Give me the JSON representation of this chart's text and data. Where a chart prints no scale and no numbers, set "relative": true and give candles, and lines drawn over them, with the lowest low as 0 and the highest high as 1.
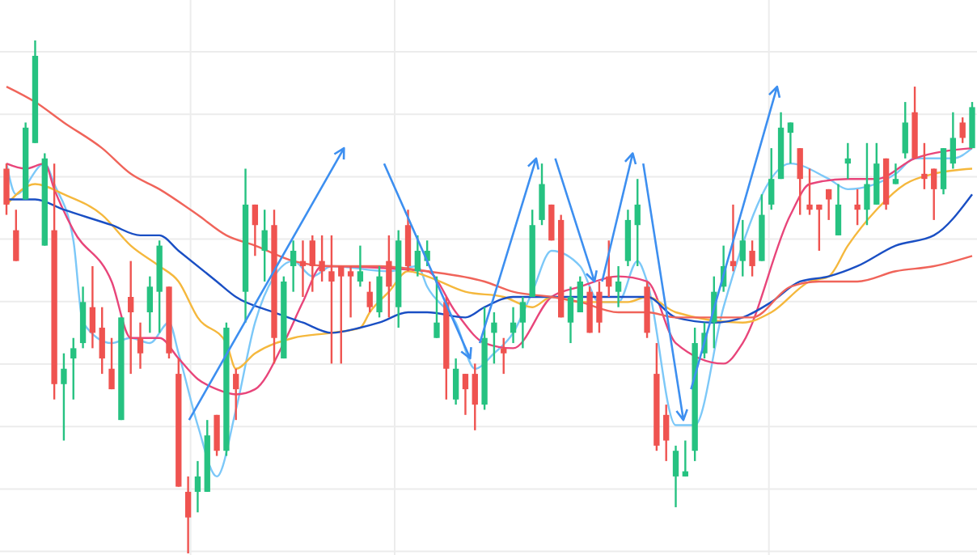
{
  "chart_data": {
    "type": "candlestick",
    "relative": true,
    "grid": true,
    "categories": [
      null,
      null,
      null,
      null,
      null,
      null,
      null,
      null,
      null,
      null,
      null,
      null,
      null,
      null,
      null,
      null,
      null,
      null,
      null,
      null,
      null,
      null,
      null,
      null,
      null,
      null,
      null,
      null,
      null,
      null,
      null,
      null,
      null,
      null,
      null,
      null,
      null,
      null,
      null,
      null,
      null,
      null,
      null,
      null,
      null,
      null,
      null,
      null,
      null,
      null,
      null,
      null,
      null,
      null,
      null,
      null,
      null,
      null,
      null,
      null,
      null,
      null,
      null,
      null,
      null,
      null,
      null,
      null,
      null,
      null,
      null,
      null,
      null,
      null,
      null,
      null,
      null,
      null,
      null,
      null,
      null,
      null,
      null,
      null,
      null,
      null,
      null,
      null,
      null,
      null,
      null,
      null,
      null,
      null,
      null,
      null,
      null,
      null,
      null,
      null,
      null,
      null
    ],
    "ohlc": [
      [
        0.75,
        0.76,
        0.66,
        0.68
      ],
      [
        0.63,
        0.67,
        0.57,
        0.57
      ],
      [
        0.69,
        0.84,
        0.69,
        0.83
      ],
      [
        0.8,
        1.0,
        0.8,
        0.97
      ],
      [
        0.6,
        0.78,
        0.6,
        0.77
      ],
      [
        0.63,
        0.76,
        0.3,
        0.33
      ],
      [
        0.33,
        0.39,
        0.22,
        0.36
      ],
      [
        0.38,
        0.42,
        0.3,
        0.4
      ],
      [
        0.41,
        0.52,
        0.4,
        0.49
      ],
      [
        0.48,
        0.56,
        0.4,
        0.43
      ],
      [
        0.44,
        0.48,
        0.35,
        0.38
      ],
      [
        0.36,
        0.42,
        0.32,
        0.32
      ],
      [
        0.26,
        0.46,
        0.26,
        0.46
      ],
      [
        0.5,
        0.57,
        0.35,
        0.47
      ],
      [
        0.42,
        0.45,
        0.36,
        0.39
      ],
      [
        0.47,
        0.54,
        0.43,
        0.52
      ],
      [
        0.51,
        0.61,
        0.43,
        0.6
      ],
      [
        0.52,
        0.52,
        0.38,
        0.39
      ],
      [
        0.35,
        0.38,
        0.13,
        0.13
      ],
      [
        0.12,
        0.15,
        0,
        0.07
      ],
      [
        0.12,
        0.18,
        0.08,
        0.15
      ],
      [
        0.12,
        0.26,
        0.12,
        0.23
      ],
      [
        0.27,
        0.27,
        0.19,
        0.2
      ],
      [
        0.2,
        0.45,
        0.19,
        0.44
      ],
      [
        0.35,
        0.36,
        0.26,
        0.32
      ],
      [
        0.51,
        0.75,
        0.45,
        0.68
      ],
      [
        0.68,
        0.68,
        0.58,
        0.64
      ],
      [
        0.59,
        0.67,
        0.53,
        0.63
      ],
      [
        0.64,
        0.67,
        0.37,
        0.42
      ],
      [
        0.38,
        0.54,
        0.38,
        0.53
      ],
      [
        0.56,
        0.61,
        0.51,
        0.59
      ],
      [
        0.57,
        0.61,
        0.5,
        0.56
      ],
      [
        0.61,
        0.62,
        0.51,
        0.56
      ],
      [
        0.57,
        0.62,
        0.53,
        0.55
      ],
      [
        0.55,
        0.62,
        0.37,
        0.53
      ],
      [
        0.56,
        0.56,
        0.37,
        0.54
      ],
      [
        0.55,
        0.56,
        0.46,
        0.54
      ],
      [
        0.53,
        0.6,
        0.52,
        0.55
      ],
      [
        0.51,
        0.53,
        0.47,
        0.48
      ],
      [
        0.47,
        0.56,
        0.46,
        0.54
      ],
      [
        0.57,
        0.62,
        0.46,
        0.52
      ],
      [
        0.48,
        0.63,
        0.44,
        0.61
      ],
      [
        0.64,
        0.67,
        0.55,
        0.56
      ],
      [
        0.55,
        0.62,
        0.54,
        0.59
      ],
      [
        0.57,
        0.61,
        0.56,
        0.59
      ],
      [
        0.42,
        0.54,
        0.42,
        0.45
      ],
      [
        0.49,
        0.5,
        0.3,
        0.36
      ],
      [
        0.3,
        0.38,
        0.29,
        0.36
      ],
      [
        0.35,
        0.35,
        0.27,
        0.32
      ],
      [
        0.35,
        0.37,
        0.24,
        0.29
      ],
      [
        0.29,
        0.48,
        0.28,
        0.42
      ],
      [
        0.43,
        0.47,
        0.37,
        0.45
      ],
      [
        0.4,
        0.42,
        0.35,
        0.39
      ],
      [
        0.43,
        0.48,
        0.41,
        0.45
      ],
      [
        0.45,
        0.5,
        0.4,
        0.49
      ],
      [
        0.5,
        0.67,
        0.5,
        0.64
      ],
      [
        0.65,
        0.76,
        0.64,
        0.72
      ],
      [
        0.68,
        0.68,
        0.61,
        0.61
      ],
      [
        0.65,
        0.66,
        0.46,
        0.46
      ],
      [
        0.45,
        0.52,
        0.41,
        0.5
      ],
      [
        0.47,
        0.54,
        0.47,
        0.53
      ],
      [
        0.51,
        0.52,
        0.43,
        0.43
      ],
      [
        0.51,
        0.53,
        0.43,
        0.45
      ],
      [
        0.54,
        0.61,
        0.5,
        0.52
      ],
      [
        0.51,
        0.56,
        0.48,
        0.53
      ],
      [
        0.57,
        0.67,
        0.56,
        0.65
      ],
      [
        0.64,
        0.73,
        0.56,
        0.68
      ],
      [
        0.52,
        0.53,
        0.42,
        0.43
      ],
      [
        0.35,
        0.41,
        0.2,
        0.21
      ],
      [
        0.27,
        0.29,
        0.18,
        0.22
      ],
      [
        0.15,
        0.21,
        0.09,
        0.2
      ],
      [
        0.15,
        0.22,
        0.15,
        0.16
      ],
      [
        0.2,
        0.44,
        0.18,
        0.41
      ],
      [
        0.39,
        0.45,
        0.38,
        0.43
      ],
      [
        0.45,
        0.54,
        0.4,
        0.51
      ],
      [
        0.52,
        0.6,
        0.51,
        0.56
      ],
      [
        0.57,
        0.68,
        0.55,
        0.56
      ],
      [
        0.57,
        0.65,
        0.54,
        0.61
      ],
      [
        0.59,
        0.61,
        0.54,
        0.56
      ],
      [
        0.57,
        0.7,
        0.57,
        0.66
      ],
      [
        0.68,
        0.79,
        0.67,
        0.73
      ],
      [
        0.73,
        0.86,
        0.73,
        0.83
      ],
      [
        0.82,
        0.84,
        0.76,
        0.84
      ],
      [
        0.79,
        0.79,
        0.66,
        0.73
      ],
      [
        0.68,
        0.75,
        0.66,
        0.67
      ],
      [
        0.68,
        0.68,
        0.59,
        0.67
      ],
      [
        0.71,
        0.71,
        0.65,
        0.69
      ],
      [
        0.62,
        0.72,
        0.62,
        0.68
      ],
      [
        0.76,
        0.8,
        0.73,
        0.77
      ],
      [
        0.68,
        0.71,
        0.64,
        0.67
      ],
      [
        0.67,
        0.8,
        0.64,
        0.72
      ],
      [
        0.68,
        0.8,
        0.68,
        0.76
      ],
      [
        0.77,
        0.77,
        0.67,
        0.68
      ],
      [
        0.72,
        0.76,
        0.72,
        0.73
      ],
      [
        0.78,
        0.88,
        0.77,
        0.84
      ],
      [
        0.86,
        0.91,
        0.77,
        0.77
      ],
      [
        0.74,
        0.8,
        0.71,
        0.73
      ],
      [
        0.75,
        0.75,
        0.65,
        0.71
      ],
      [
        0.71,
        0.79,
        0.7,
        0.79
      ],
      [
        0.76,
        0.86,
        0.75,
        0.81
      ],
      [
        0.84,
        0.85,
        0.8,
        0.81
      ],
      [
        0.79,
        0.88,
        0.79,
        0.87
      ]
    ],
    "colors": [
      "#ef5350",
      "#ef5350",
      "#26c281",
      "#26c281",
      "#26c281",
      "#ef5350",
      "#26c281",
      "#26c281",
      "#26c281",
      "#ef5350",
      "#ef5350",
      "#ef5350",
      "#26c281",
      "#ef5350",
      "#ef5350",
      "#26c281",
      "#26c281",
      "#ef5350",
      "#ef5350",
      "#ef5350",
      "#26c281",
      "#26c281",
      "#ef5350",
      "#26c281",
      "#ef5350",
      "#26c281",
      "#ef5350",
      "#26c281",
      "#ef5350",
      "#26c281",
      "#26c281",
      "#ef5350",
      "#ef5350",
      "#ef5350",
      "#ef5350",
      "#ef5350",
      "#ef5350",
      "#26c281",
      "#ef5350",
      "#26c281",
      "#ef5350",
      "#26c281",
      "#ef5350",
      "#26c281",
      "#26c281",
      "#26c281",
      "#ef5350",
      "#26c281",
      "#ef5350",
      "#ef5350",
      "#26c281",
      "#26c281",
      "#ef5350",
      "#26c281",
      "#26c281",
      "#26c281",
      "#26c281",
      "#ef5350",
      "#ef5350",
      "#26c281",
      "#26c281",
      "#ef5350",
      "#ef5350",
      "#ef5350",
      "#26c281",
      "#26c281",
      "#26c281",
      "#ef5350",
      "#ef5350",
      "#ef5350",
      "#26c281",
      "#26c281",
      "#26c281",
      "#26c281",
      "#26c281",
      "#26c281",
      "#ef5350",
      "#26c281",
      "#ef5350",
      "#26c281",
      "#26c281",
      "#26c281",
      "#26c281",
      "#ef5350",
      "#ef5350",
      "#ef5350",
      "#ef5350",
      "#26c281",
      "#26c281",
      "#ef5350",
      "#26c281",
      "#26c281",
      "#ef5350",
      "#26c281",
      "#26c281",
      "#ef5350",
      "#ef5350",
      "#ef5350",
      "#26c281",
      "#26c281",
      "#ef5350",
      "#26c281"
    ],
    "series": [
      {
        "type": "line",
        "color": "#7cc8f8",
        "values": [
          0.76,
          0.7,
          null,
          null,
          0.76,
          0.72,
          null,
          0.61,
          0.45,
          null,
          null,
          0.41,
          null,
          0.42,
          null,
          0.41,
          null,
          0.45,
          0.39,
          null,
          0.25,
          null,
          0.15,
          null,
          0.28,
          null,
          0.45,
          null,
          0.54,
          null,
          0.57,
          null,
          0.54,
          null,
          0.56,
          null,
          null,
          null,
          null,
          null,
          0.55,
          null,
          null,
          0.56,
          0.52,
          null,
          null,
          0.45,
          null,
          0.36,
          null,
          0.39,
          null,
          0.43,
          null,
          0.51,
          null,
          0.59,
          null,
          null,
          0.56,
          null,
          0.49,
          null,
          0.49,
          null,
          0.57,
          0.53,
          null,
          null,
          0.25,
          null,
          0.25,
          null,
          null,
          0.48,
          null,
          null,
          null,
          null,
          null,
          null,
          0.76,
          null,
          null,
          null,
          0.73,
          null,
          0.71,
          null,
          null,
          null,
          null,
          0.74,
          null,
          0.77,
          null,
          null,
          null,
          0.77,
          null,
          0.79
        ]
      },
      {
        "type": "line",
        "color": "#e8457a",
        "values": [
          0.76,
          null,
          0.75,
          null,
          0.76,
          0.71,
          null,
          0.63,
          null,
          null,
          null,
          0.53,
          null,
          0.42,
          null,
          null,
          0.42,
          null,
          0.38,
          null,
          0.34,
          null,
          0.32,
          null,
          0.31,
          null,
          0.32,
          null,
          null,
          0.41,
          null,
          0.49,
          null,
          0.56,
          null,
          null,
          null,
          null,
          null,
          null,
          null,
          null,
          null,
          null,
          0.55,
          null,
          null,
          0.47,
          null,
          null,
          0.41,
          null,
          null,
          0.4,
          null,
          null,
          null,
          0.5,
          null,
          null,
          0.52,
          null,
          null,
          null,
          0.54,
          null,
          null,
          0.53,
          null,
          null,
          0.41,
          null,
          null,
          null,
          null,
          0.37,
          null,
          0.41,
          null,
          null,
          null,
          null,
          0.66,
          null,
          0.72,
          null,
          null,
          null,
          0.73,
          null,
          null,
          0.73,
          null,
          null,
          null,
          0.77,
          null,
          null,
          null,
          null,
          null,
          0.79
        ]
      },
      {
        "type": "line",
        "color": "#f5b83d",
        "values": [
          0.68,
          null,
          null,
          0.72,
          null,
          null,
          0.7,
          null,
          null,
          null,
          0.66,
          null,
          null,
          0.6,
          null,
          null,
          0.56,
          null,
          0.53,
          null,
          0.46,
          null,
          null,
          0.41,
          0.36,
          null,
          0.39,
          null,
          null,
          null,
          0.42,
          null,
          null,
          null,
          0.43,
          null,
          null,
          0.44,
          0.47,
          null,
          0.51,
          null,
          0.55,
          null,
          0.54,
          null,
          null,
          null,
          0.51,
          null,
          null,
          null,
          0.5,
          null,
          null,
          0.48,
          null,
          0.5,
          null,
          null,
          0.49,
          null,
          0.49,
          null,
          null,
          0.49,
          null,
          0.5,
          null,
          null,
          0.47,
          null,
          null,
          null,
          null,
          null,
          null,
          0.45,
          null,
          null,
          0.47,
          null,
          null,
          null,
          0.53,
          null,
          0.54,
          null,
          0.6,
          null,
          null,
          0.67,
          null,
          null,
          0.72,
          null,
          null,
          0.74,
          null,
          null,
          null,
          0.75
        ]
      },
      {
        "type": "line",
        "color": "#1a4fc4",
        "values": [
          0.69,
          null,
          null,
          0.69,
          null,
          null,
          0.67,
          null,
          null,
          null,
          null,
          0.64,
          null,
          null,
          0.62,
          null,
          0.62,
          null,
          0.59,
          null,
          null,
          null,
          0.53,
          null,
          0.5,
          null,
          null,
          null,
          0.47,
          null,
          null,
          0.45,
          null,
          null,
          0.43,
          null,
          null,
          0.44,
          null,
          0.45,
          null,
          null,
          0.47,
          null,
          0.47,
          null,
          null,
          null,
          0.46,
          null,
          0.48,
          null,
          null,
          0.5,
          null,
          null,
          null,
          0.5,
          null,
          null,
          0.5,
          null,
          null,
          null,
          0.5,
          null,
          null,
          0.5,
          null,
          null,
          0.46,
          null,
          null,
          null,
          0.45,
          null,
          null,
          0.46,
          null,
          null,
          0.49,
          null,
          null,
          0.53,
          null,
          null,
          0.54,
          null,
          null,
          0.56,
          null,
          null,
          null,
          0.6,
          null,
          null,
          null,
          0.62,
          null,
          null,
          null,
          0.7
        ]
      },
      {
        "type": "line",
        "color": "#f0645a",
        "values": [
          0.91,
          null,
          null,
          0.88,
          null,
          null,
          0.84,
          null,
          null,
          null,
          0.79,
          null,
          null,
          0.74,
          null,
          null,
          0.71,
          null,
          null,
          null,
          0.66,
          null,
          null,
          0.62,
          null,
          null,
          0.6,
          null,
          null,
          null,
          0.57,
          null,
          null,
          null,
          0.56,
          null,
          null,
          null,
          null,
          0.56,
          null,
          null,
          null,
          null,
          0.55,
          null,
          null,
          null,
          null,
          null,
          0.53,
          null,
          null,
          0.51,
          null,
          null,
          null,
          0.5,
          null,
          null,
          0.49,
          null,
          null,
          null,
          0.47,
          null,
          null,
          0.47,
          null,
          null,
          0.46,
          null,
          null,
          null,
          null,
          0.46,
          null,
          null,
          0.46,
          null,
          null,
          null,
          0.52,
          null,
          null,
          0.53,
          null,
          null,
          null,
          0.53,
          null,
          null,
          null,
          0.55,
          null,
          null,
          null,
          0.56,
          null,
          null,
          null,
          0.58
        ]
      }
    ]
  }
}
